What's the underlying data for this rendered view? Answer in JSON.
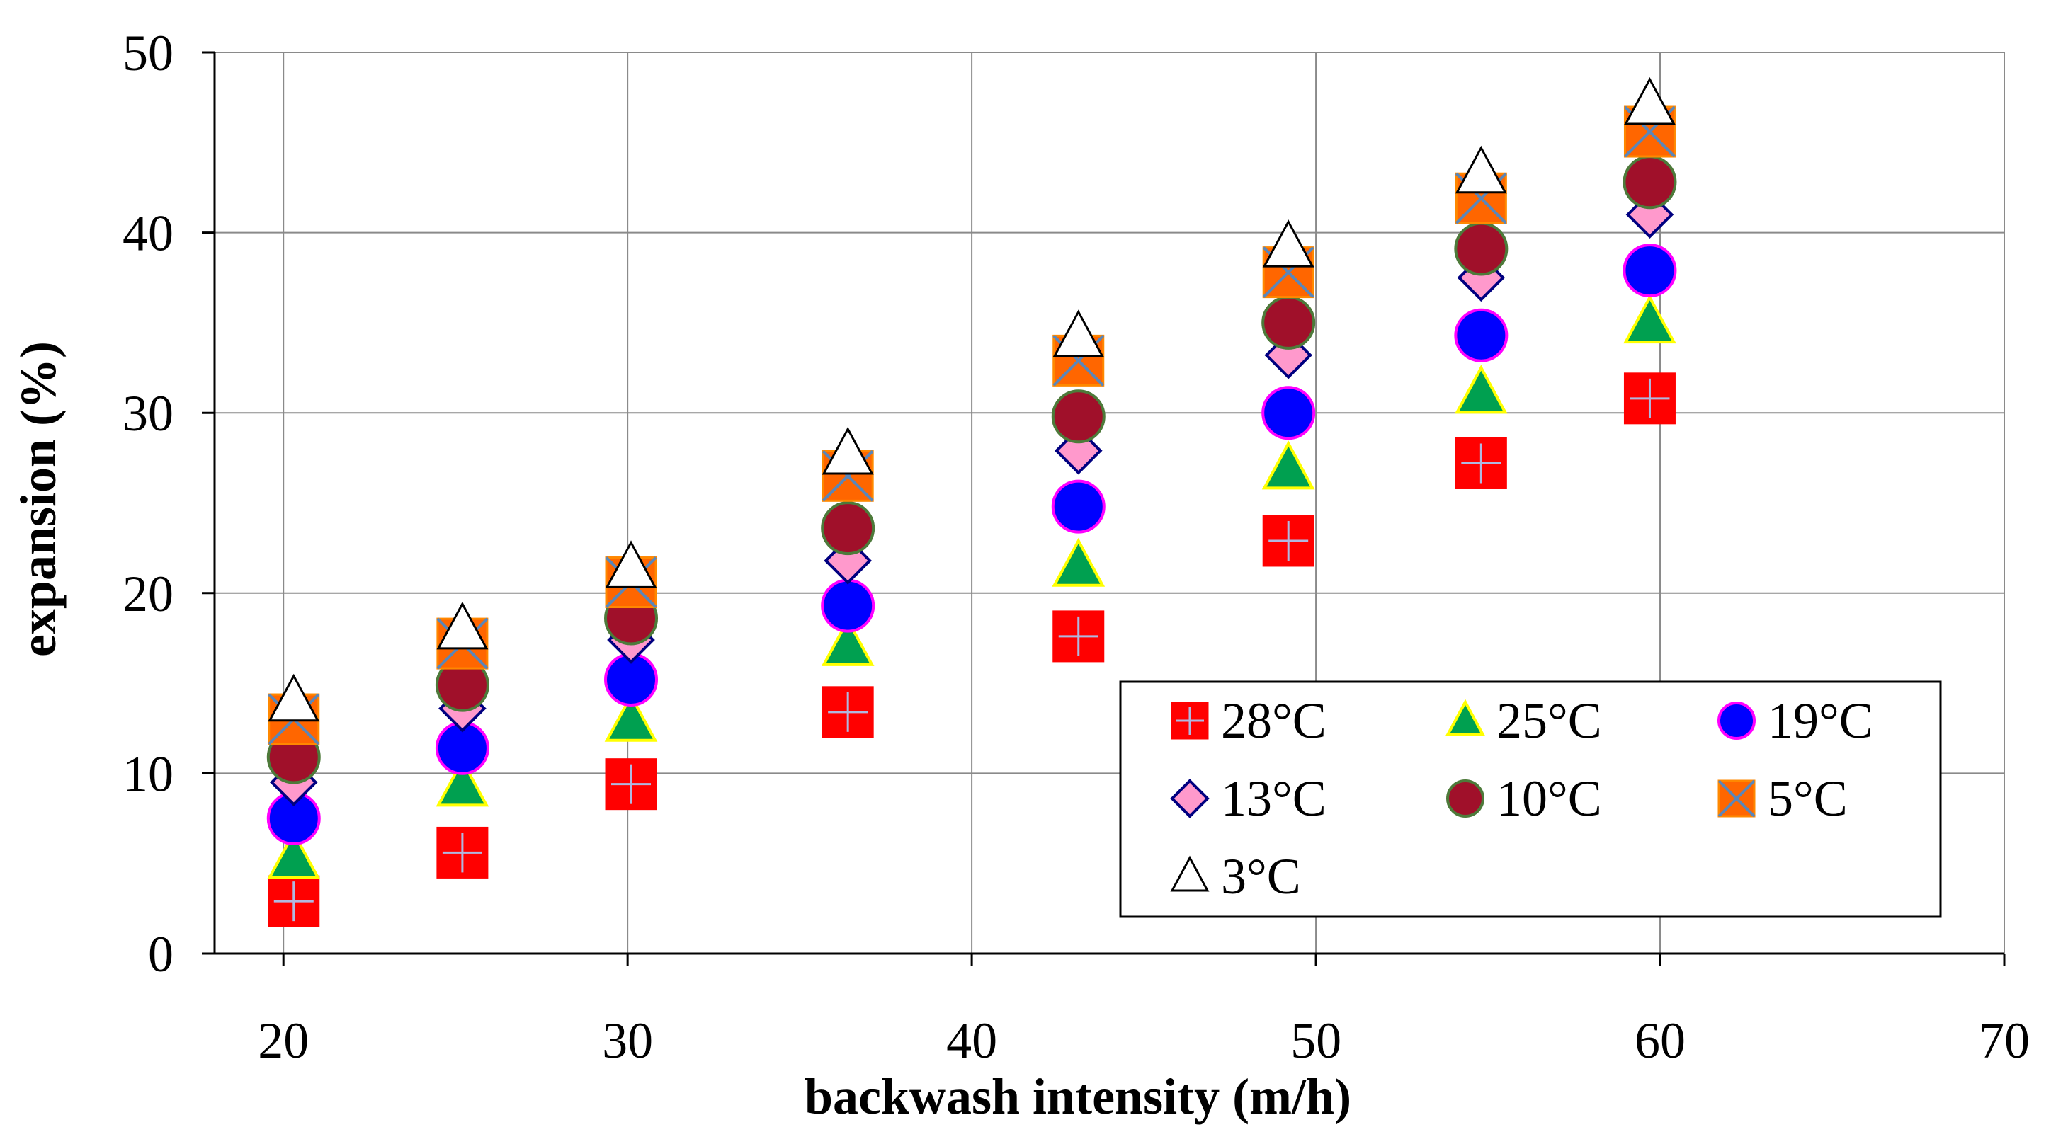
{
  "chart_data": {
    "type": "scatter",
    "title": "",
    "xlabel": "backwash intensity (m/h)",
    "ylabel": "expansion (%)",
    "xlim": [
      18,
      70
    ],
    "ylim": [
      0,
      50
    ],
    "xticks": [
      20,
      30,
      40,
      50,
      60,
      70
    ],
    "yticks": [
      0,
      10,
      20,
      30,
      40,
      50
    ],
    "grid": true,
    "legend_position": "lower-right",
    "x": [
      20.3,
      25.2,
      30.1,
      36.4,
      43.1,
      49.2,
      54.8,
      59.7
    ],
    "series": [
      {
        "name": "28°C",
        "marker": "square-plus",
        "fill": "#ff0000",
        "stroke": "#ff0000",
        "values": [
          2.9,
          5.6,
          9.4,
          13.4,
          17.6,
          22.9,
          27.2,
          30.8
        ]
      },
      {
        "name": "25°C",
        "marker": "triangle",
        "fill": "#00a050",
        "stroke": "#ffff00",
        "values": [
          5.3,
          9.3,
          12.9,
          17.1,
          21.5,
          26.9,
          31.1,
          35.0
        ]
      },
      {
        "name": "19°C",
        "marker": "circle",
        "fill": "#0000ff",
        "stroke": "#ff00ff",
        "values": [
          7.5,
          11.4,
          15.2,
          19.3,
          24.8,
          30.0,
          34.3,
          37.9
        ]
      },
      {
        "name": "13°C",
        "marker": "diamond",
        "fill": "#ff99cc",
        "stroke": "#000080",
        "values": [
          9.5,
          13.6,
          17.4,
          21.8,
          27.9,
          33.2,
          37.5,
          41.0
        ]
      },
      {
        "name": "10°C",
        "marker": "circle",
        "fill": "#a0102a",
        "stroke": "#4d7a3a",
        "values": [
          10.9,
          14.9,
          18.6,
          23.6,
          29.8,
          35.0,
          39.1,
          42.8
        ]
      },
      {
        "name": "5°C",
        "marker": "square-x",
        "fill": "#ff6600",
        "stroke": "#5b86b8",
        "values": [
          13.0,
          17.2,
          20.6,
          26.5,
          32.9,
          37.8,
          41.9,
          45.6
        ]
      },
      {
        "name": "3°C",
        "marker": "open-triangle",
        "fill": "#ffffff",
        "stroke": "#000000",
        "values": [
          14.0,
          18.0,
          21.4,
          27.7,
          34.2,
          39.2,
          43.3,
          47.1
        ]
      }
    ]
  }
}
